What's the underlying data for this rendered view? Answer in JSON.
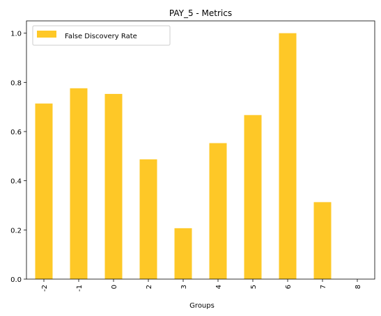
{
  "chart_data": {
    "type": "bar",
    "title": "PAY_5 - Metrics",
    "xlabel": "Groups",
    "ylabel": "",
    "categories": [
      "-2",
      "-1",
      "0",
      "2",
      "3",
      "4",
      "5",
      "6",
      "7",
      "8"
    ],
    "series": [
      {
        "name": "False Discovery Rate",
        "values": [
          0.714,
          0.776,
          0.753,
          0.487,
          0.207,
          0.553,
          0.667,
          1.0,
          0.313,
          0.0
        ],
        "color": "#fec827"
      }
    ],
    "ylim": [
      0,
      1.05
    ],
    "yticks": [
      "0.0",
      "0.2",
      "0.4",
      "0.6",
      "0.8",
      "1.0"
    ],
    "grid": false,
    "legend_position": "top-left",
    "x_tick_rotation": "vertical"
  }
}
